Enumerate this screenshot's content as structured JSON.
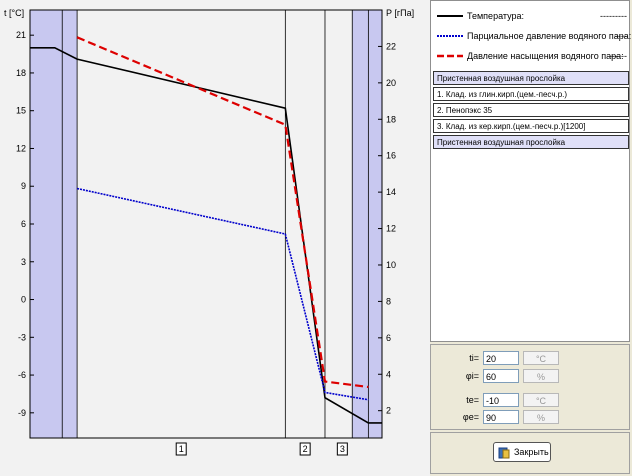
{
  "axes": {
    "left_label": "t [°C]",
    "right_label": "P [гПа]",
    "left_ticks": [
      "21",
      "18",
      "15",
      "12",
      "9",
      "6",
      "3",
      "0",
      "-3",
      "-6",
      "-9"
    ],
    "right_ticks": [
      "22",
      "20",
      "18",
      "16",
      "14",
      "12",
      "10",
      "8",
      "6",
      "4",
      "2"
    ],
    "layer_numbers": [
      "1",
      "2",
      "3"
    ]
  },
  "legend": {
    "temperature": {
      "label": "Температура:",
      "pattern": "---------"
    },
    "partial": {
      "label": "Парциальное давление водяного пара:",
      "pattern": "----"
    },
    "saturation": {
      "label": "Давление насыщения водяного пара:",
      "pattern": "------"
    }
  },
  "layers": [
    {
      "label": "Пристенная воздушная прослойка",
      "air": true
    },
    {
      "label": "1. Клад. из глин.кирп.(цем.-песч.р.)",
      "air": false
    },
    {
      "label": "2. Пенопэкс 35",
      "air": false
    },
    {
      "label": "3. Клад. из кер.кирп.(цем.-песч.р.)[1200]",
      "air": false
    },
    {
      "label": "Пристенная воздушная прослойка",
      "air": true
    }
  ],
  "params": {
    "ti_label": "ti=",
    "ti_value": "20",
    "ti_unit": "°C",
    "phii_label": "φi=",
    "phii_value": "60",
    "phii_unit": "%",
    "te_label": "te=",
    "te_value": "-10",
    "te_unit": "°C",
    "phie_label": "φe=",
    "phie_value": "90",
    "phie_unit": "%"
  },
  "close_label": "Закрыть",
  "colors": {
    "temperature": "#000000",
    "partial": "#0000cc",
    "saturation": "#dd0000",
    "air_layer": "#c8c8f0"
  },
  "chart_data": {
    "type": "line",
    "title": "",
    "xlabel": "",
    "ylabel": "t [°C]",
    "y2label": "P [гПа]",
    "ylim": [
      -11,
      23
    ],
    "y2lim": [
      0.5,
      24.0
    ],
    "series": [
      {
        "name": "Температура",
        "axis": "left",
        "x": [
          0,
          2,
          3.8,
          20.6,
          23.8,
          27.3,
          28.4
        ],
        "y": [
          20,
          20,
          19.1,
          15.2,
          -7.8,
          -9.8,
          -9.8
        ]
      },
      {
        "name": "Парциальное давление водяного пара",
        "axis": "right",
        "x": [
          3.8,
          20.6,
          23.8,
          27.3
        ],
        "y": [
          14.2,
          11.7,
          3.0,
          2.6
        ]
      },
      {
        "name": "Давление насыщения водяного пара",
        "axis": "right",
        "x": [
          3.8,
          20.6,
          23.8,
          27.3
        ],
        "y": [
          22.5,
          17.7,
          3.6,
          3.3
        ]
      }
    ]
  }
}
